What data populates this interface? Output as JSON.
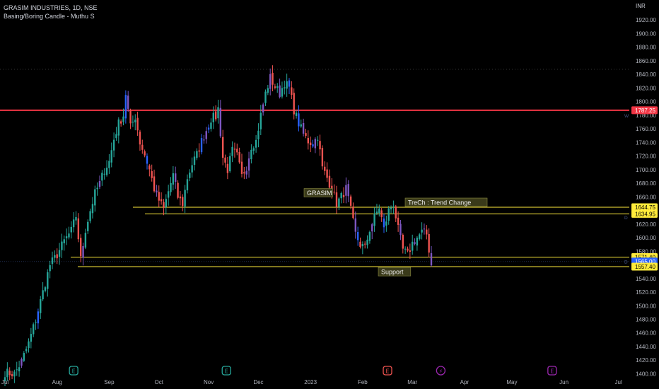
{
  "header": {
    "symbol_line": "GRASIM INDUSTRIES, 1D, NSE",
    "indicator_line": "Basing/Boring Candle - Muthu S",
    "currency": "INR"
  },
  "chart_data": {
    "type": "candlestick",
    "symbol": "GRASIM INDUSTRIES",
    "timeframe": "1D",
    "exchange": "NSE",
    "currency": "INR",
    "ylim": [
      1395,
      1930
    ],
    "y_ticks": [
      "1400.00",
      "1420.00",
      "1440.00",
      "1460.00",
      "1480.00",
      "1500.00",
      "1520.00",
      "1540.00",
      "1560.00",
      "1580.00",
      "1600.00",
      "1620.00",
      "1640.00",
      "1660.00",
      "1680.00",
      "1700.00",
      "1720.00",
      "1740.00",
      "1760.00",
      "1780.00",
      "1800.00",
      "1820.00",
      "1840.00",
      "1860.00",
      "1880.00",
      "1900.00",
      "1920.00"
    ],
    "x_ticks": [
      {
        "label": "Jul",
        "t": 0
      },
      {
        "label": "Aug",
        "t": 22
      },
      {
        "label": "Sep",
        "t": 44
      },
      {
        "label": "Oct",
        "t": 65
      },
      {
        "label": "Nov",
        "t": 86
      },
      {
        "label": "Dec",
        "t": 107
      },
      {
        "label": "2023",
        "t": 129
      },
      {
        "label": "Feb",
        "t": 151
      },
      {
        "label": "Mar",
        "t": 172
      },
      {
        "label": "Apr",
        "t": 194
      },
      {
        "label": "May",
        "t": 214
      },
      {
        "label": "Jun",
        "t": 236
      },
      {
        "label": "Jul",
        "t": 259
      }
    ],
    "grid": false,
    "levels": [
      {
        "value": 1787.25,
        "label": "1787.25",
        "color": "#f23645"
      },
      {
        "value": 1644.75,
        "label": "1644.75",
        "color": "#ffeb3b"
      },
      {
        "value": 1634.95,
        "label": "1634.95",
        "color": "#ffeb3b"
      },
      {
        "value": 1571.4,
        "label": "1571.40",
        "color": "#ffeb3b"
      },
      {
        "value": 1565.0,
        "label": "1565.00",
        "color": "#2962ff"
      },
      {
        "value": 1557.4,
        "label": "1557.40",
        "color": "#ffeb3b"
      }
    ],
    "annotations": [
      {
        "text": "GRASIM",
        "value": 1666
      },
      {
        "text": "TreCh : Trend Change",
        "value": 1652
      },
      {
        "text": "Support",
        "value": 1550
      }
    ],
    "waypoints": [
      [
        0,
        1402
      ],
      [
        4,
        1400
      ],
      [
        7,
        1418
      ],
      [
        10,
        1445
      ],
      [
        13,
        1480
      ],
      [
        16,
        1520
      ],
      [
        19,
        1560
      ],
      [
        22,
        1575
      ],
      [
        25,
        1595
      ],
      [
        28,
        1610
      ],
      [
        30,
        1632
      ],
      [
        32,
        1568
      ],
      [
        34,
        1612
      ],
      [
        36,
        1640
      ],
      [
        38,
        1665
      ],
      [
        40,
        1680
      ],
      [
        42,
        1700
      ],
      [
        44,
        1712
      ],
      [
        46,
        1745
      ],
      [
        48,
        1768
      ],
      [
        50,
        1780
      ],
      [
        51,
        1812
      ],
      [
        53,
        1762
      ],
      [
        55,
        1778
      ],
      [
        57,
        1740
      ],
      [
        59,
        1722
      ],
      [
        61,
        1700
      ],
      [
        63,
        1672
      ],
      [
        65,
        1655
      ],
      [
        67,
        1642
      ],
      [
        69,
        1668
      ],
      [
        71,
        1692
      ],
      [
        73,
        1660
      ],
      [
        75,
        1650
      ],
      [
        77,
        1688
      ],
      [
        79,
        1708
      ],
      [
        81,
        1722
      ],
      [
        83,
        1742
      ],
      [
        85,
        1758
      ],
      [
        87,
        1775
      ],
      [
        89,
        1778
      ],
      [
        90,
        1790
      ],
      [
        92,
        1718
      ],
      [
        94,
        1700
      ],
      [
        96,
        1728
      ],
      [
        98,
        1720
      ],
      [
        100,
        1690
      ],
      [
        102,
        1705
      ],
      [
        104,
        1735
      ],
      [
        106,
        1742
      ],
      [
        108,
        1780
      ],
      [
        110,
        1812
      ],
      [
        112,
        1835
      ],
      [
        114,
        1822
      ],
      [
        116,
        1812
      ],
      [
        118,
        1828
      ],
      [
        120,
        1820
      ],
      [
        122,
        1788
      ],
      [
        124,
        1768
      ],
      [
        126,
        1752
      ],
      [
        128,
        1742
      ],
      [
        130,
        1738
      ],
      [
        132,
        1750
      ],
      [
        134,
        1702
      ],
      [
        136,
        1688
      ],
      [
        138,
        1672
      ],
      [
        140,
        1650
      ],
      [
        142,
        1660
      ],
      [
        144,
        1672
      ],
      [
        146,
        1640
      ],
      [
        148,
        1605
      ],
      [
        150,
        1590
      ],
      [
        152,
        1585
      ],
      [
        154,
        1612
      ],
      [
        156,
        1630
      ],
      [
        158,
        1645
      ],
      [
        160,
        1612
      ],
      [
        162,
        1640
      ],
      [
        164,
        1650
      ],
      [
        166,
        1612
      ],
      [
        168,
        1582
      ],
      [
        170,
        1575
      ],
      [
        172,
        1592
      ],
      [
        174,
        1600
      ],
      [
        176,
        1608
      ],
      [
        178,
        1605
      ],
      [
        180,
        1560
      ],
      [
        181,
        1560
      ]
    ]
  }
}
